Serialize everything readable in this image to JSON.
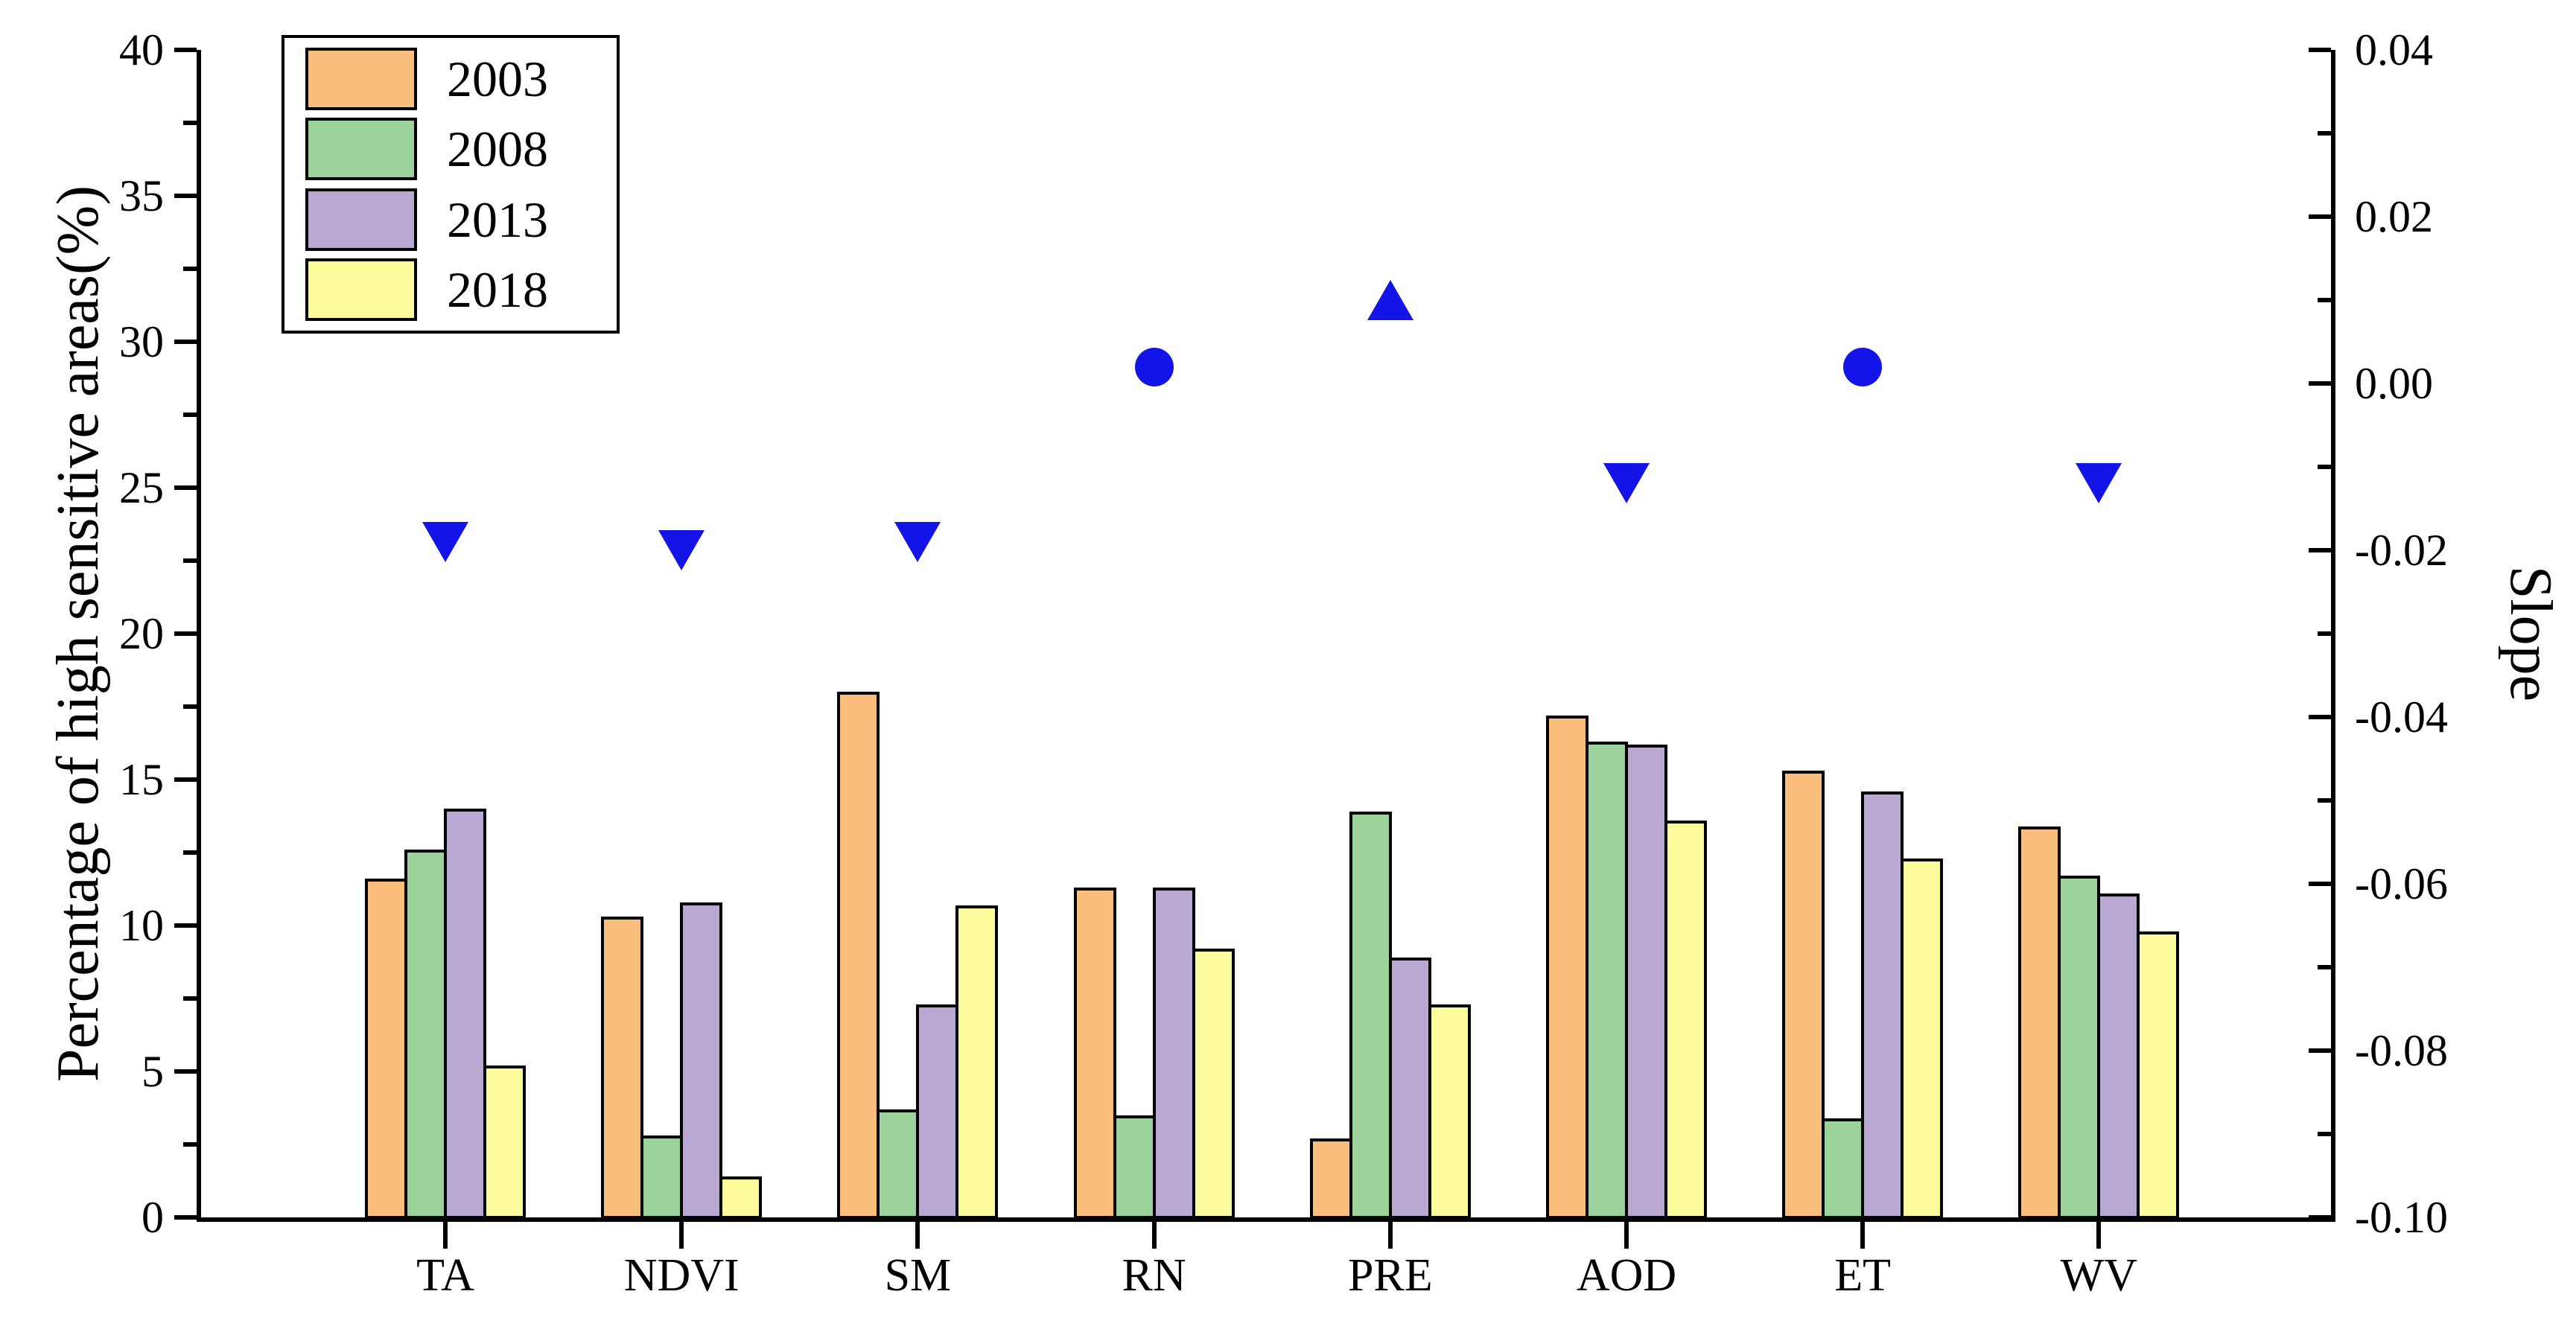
{
  "chart_data": {
    "type": "bar",
    "title": "",
    "xlabel": "",
    "categories": [
      "TA",
      "NDVI",
      "SM",
      "RN",
      "PRE",
      "AOD",
      "ET",
      "WV"
    ],
    "series": [
      {
        "name": "2003",
        "color": "#FBBE7D",
        "values": [
          11.6,
          10.3,
          18.0,
          11.3,
          2.7,
          17.2,
          15.3,
          13.4
        ]
      },
      {
        "name": "2008",
        "color": "#9CD39B",
        "values": [
          12.6,
          2.8,
          3.7,
          3.5,
          13.9,
          16.3,
          3.4,
          11.7
        ]
      },
      {
        "name": "2013",
        "color": "#B9A8D2",
        "values": [
          14.0,
          10.8,
          7.3,
          11.3,
          8.9,
          16.2,
          14.6,
          11.1
        ]
      },
      {
        "name": "2018",
        "color": "#FCFC9D",
        "values": [
          5.2,
          1.4,
          10.7,
          9.2,
          7.3,
          13.6,
          12.3,
          9.8
        ]
      }
    ],
    "slope_markers": {
      "name": "Slope",
      "color": "#1414E8",
      "points": [
        {
          "category": "TA",
          "value": -0.019,
          "shape": "triangle-down"
        },
        {
          "category": "NDVI",
          "value": -0.02,
          "shape": "triangle-down"
        },
        {
          "category": "SM",
          "value": -0.019,
          "shape": "triangle-down"
        },
        {
          "category": "RN",
          "value": 0.002,
          "shape": "circle"
        },
        {
          "category": "PRE",
          "value": 0.01,
          "shape": "triangle-up"
        },
        {
          "category": "AOD",
          "value": -0.012,
          "shape": "triangle-down"
        },
        {
          "category": "ET",
          "value": 0.002,
          "shape": "circle"
        },
        {
          "category": "WV",
          "value": -0.012,
          "shape": "triangle-down"
        }
      ]
    },
    "left_axis": {
      "label": "Percentage of high sensitive areas(%)",
      "min": 0,
      "max": 40,
      "major_tick_values": [
        0,
        5,
        10,
        15,
        20,
        25,
        30,
        35,
        40
      ],
      "major_tick_labels": [
        "0",
        "5",
        "10",
        "15",
        "20",
        "25",
        "30",
        "35",
        "40"
      ],
      "minor_step": 2.5
    },
    "right_axis": {
      "label": "Slope",
      "min": -0.1,
      "max": 0.04,
      "major_tick_values": [
        0.04,
        0.02,
        0.0,
        -0.02,
        -0.04,
        -0.06,
        -0.08,
        -0.1
      ],
      "major_tick_labels": [
        "0.04",
        "0.02",
        "0.00",
        "-0.02",
        "-0.04",
        "-0.06",
        "-0.08",
        "-0.10"
      ],
      "minor_step": 0.01
    },
    "legend": {
      "position": "top-left",
      "entries": [
        "2003",
        "2008",
        "2013",
        "2018"
      ]
    },
    "grid": false
  }
}
